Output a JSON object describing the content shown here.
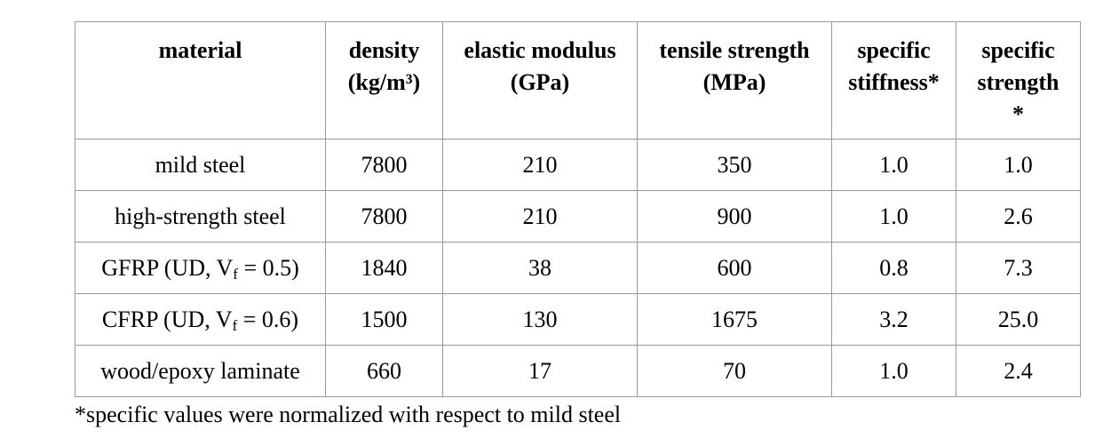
{
  "table": {
    "header": [
      [
        "material"
      ],
      [
        "density",
        "(kg/m³)"
      ],
      [
        "elastic modulus",
        "(GPa)"
      ],
      [
        "tensile strength",
        "(MPa)"
      ],
      [
        "specific",
        "stiffness*"
      ],
      [
        "specific",
        "strength",
        "*"
      ]
    ],
    "rows": [
      [
        "mild steel",
        "7800",
        "210",
        "350",
        "1.0",
        "1.0"
      ],
      [
        "high-strength steel",
        "7800",
        "210",
        "900",
        "1.0",
        "2.6"
      ],
      [
        {
          "text": "GFRP (UD, V",
          "sub": "f",
          "tail": " = 0.5)"
        },
        "1840",
        "38",
        "600",
        "0.8",
        "7.3"
      ],
      [
        {
          "text": "CFRP (UD, V",
          "sub": "f",
          "tail": " = 0.6)"
        },
        "1500",
        "130",
        "1675",
        "3.2",
        "25.0"
      ],
      [
        "wood/epoxy laminate",
        "660",
        "17",
        "70",
        "1.0",
        "2.4"
      ]
    ]
  },
  "footnote": "*specific values were normalized with respect to mild steel"
}
